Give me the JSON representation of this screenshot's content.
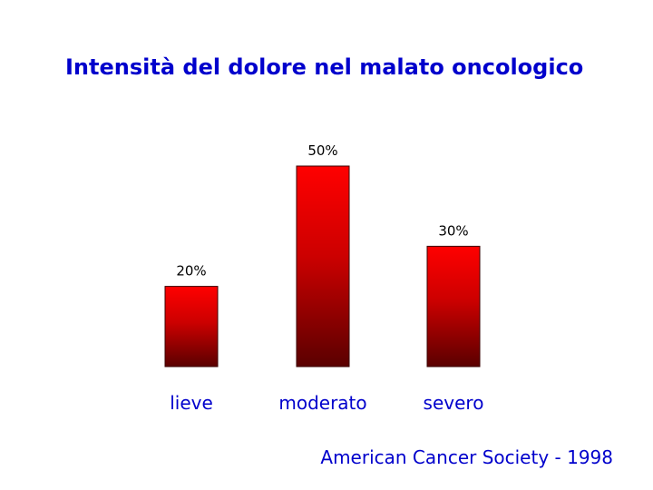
{
  "title": "Intensità del dolore nel malato oncologico",
  "source": "American Cancer Society - 1998",
  "colors": {
    "title": "#0000cc",
    "bar_top": "#ff0000",
    "bar_bottom": "#5a0000",
    "category_label": "#0000cc",
    "value_label": "#000000"
  },
  "chart_data": {
    "type": "bar",
    "categories": [
      "lieve",
      "moderato",
      "severo"
    ],
    "values": [
      20,
      50,
      30
    ],
    "value_labels": [
      "20%",
      "50%",
      "30%"
    ],
    "ylim": [
      0,
      50
    ],
    "grid": false,
    "legend": "none"
  }
}
